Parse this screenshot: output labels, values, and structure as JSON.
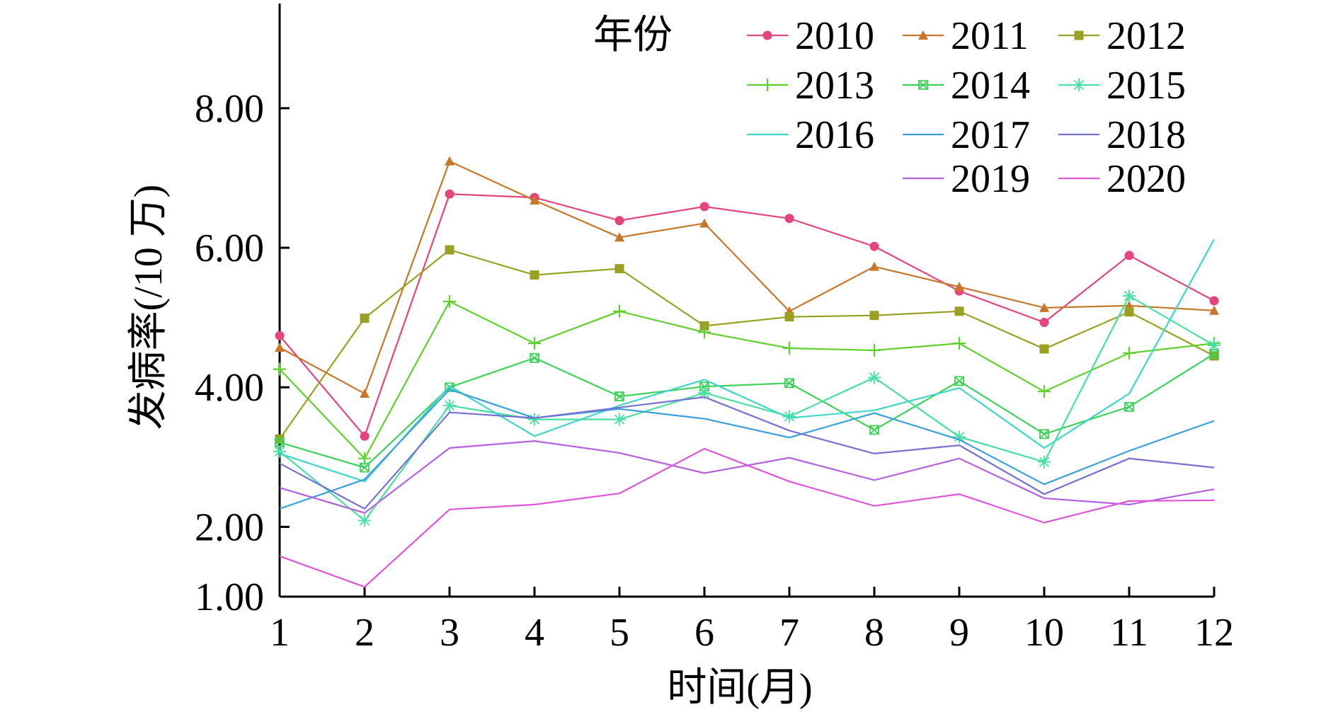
{
  "chart_data": {
    "type": "line",
    "title": "",
    "xlabel": "时间(月)",
    "ylabel": "发病率(/10 万)",
    "legend_title": "年份",
    "legend_position": "top-right",
    "grid": false,
    "x": [
      1,
      2,
      3,
      4,
      5,
      6,
      7,
      8,
      9,
      10,
      11,
      12
    ],
    "x_ticks": [
      "1",
      "2",
      "3",
      "4",
      "5",
      "6",
      "7",
      "8",
      "9",
      "10",
      "11",
      "12"
    ],
    "ylim": [
      1.0,
      9.5
    ],
    "y_ticks": [
      {
        "value": 1.0,
        "label": "1.00"
      },
      {
        "value": 2.0,
        "label": "2.00"
      },
      {
        "value": 4.0,
        "label": "4.00"
      },
      {
        "value": 6.0,
        "label": "6.00"
      },
      {
        "value": 8.0,
        "label": "8.00"
      }
    ],
    "series": [
      {
        "name": "2010",
        "color": "#e5457a",
        "marker": "circle",
        "values": [
          4.74,
          3.3,
          6.77,
          6.72,
          6.39,
          6.59,
          6.42,
          6.02,
          5.38,
          4.93,
          5.89,
          5.24
        ]
      },
      {
        "name": "2011",
        "color": "#c8772a",
        "marker": "triangle",
        "values": [
          4.57,
          3.91,
          7.24,
          6.68,
          6.15,
          6.35,
          5.09,
          5.73,
          5.44,
          5.14,
          5.17,
          5.1
        ]
      },
      {
        "name": "2012",
        "color": "#9aa122",
        "marker": "square",
        "values": [
          3.26,
          4.99,
          5.97,
          5.61,
          5.7,
          4.88,
          5.01,
          5.03,
          5.09,
          4.55,
          5.08,
          4.45
        ]
      },
      {
        "name": "2013",
        "color": "#5fd12f",
        "marker": "plus",
        "values": [
          4.26,
          2.98,
          5.23,
          4.63,
          5.09,
          4.79,
          4.56,
          4.53,
          4.63,
          3.94,
          4.49,
          4.63
        ]
      },
      {
        "name": "2014",
        "color": "#3ed25a",
        "marker": "boxed",
        "values": [
          3.21,
          2.85,
          4.0,
          4.42,
          3.87,
          4.01,
          4.06,
          3.39,
          4.09,
          3.33,
          3.72,
          4.48
        ]
      },
      {
        "name": "2015",
        "color": "#46e0a0",
        "marker": "star",
        "values": [
          3.08,
          2.09,
          3.74,
          3.54,
          3.54,
          3.92,
          3.58,
          4.14,
          3.29,
          2.93,
          5.31,
          4.6
        ]
      },
      {
        "name": "2016",
        "color": "#3fd6c8",
        "marker": "none",
        "values": [
          3.05,
          2.65,
          4.02,
          3.3,
          3.74,
          4.11,
          3.56,
          3.67,
          3.99,
          3.13,
          3.91,
          6.12
        ]
      },
      {
        "name": "2017",
        "color": "#3aa0df",
        "marker": "none",
        "values": [
          2.26,
          2.68,
          3.97,
          3.56,
          3.69,
          3.55,
          3.28,
          3.63,
          3.25,
          2.61,
          3.09,
          3.52
        ]
      },
      {
        "name": "2018",
        "color": "#7470d4",
        "marker": "none",
        "values": [
          2.91,
          2.26,
          3.64,
          3.56,
          3.71,
          3.86,
          3.38,
          3.05,
          3.17,
          2.47,
          2.98,
          2.85
        ]
      },
      {
        "name": "2019",
        "color": "#b460e0",
        "marker": "none",
        "values": [
          2.56,
          2.2,
          3.13,
          3.23,
          3.06,
          2.77,
          2.99,
          2.67,
          2.98,
          2.41,
          2.32,
          2.54
        ]
      },
      {
        "name": "2020",
        "color": "#e055d8",
        "marker": "none",
        "values": [
          1.58,
          1.14,
          2.25,
          2.32,
          2.48,
          3.12,
          2.65,
          2.3,
          2.47,
          2.06,
          2.37,
          2.38
        ]
      }
    ]
  }
}
